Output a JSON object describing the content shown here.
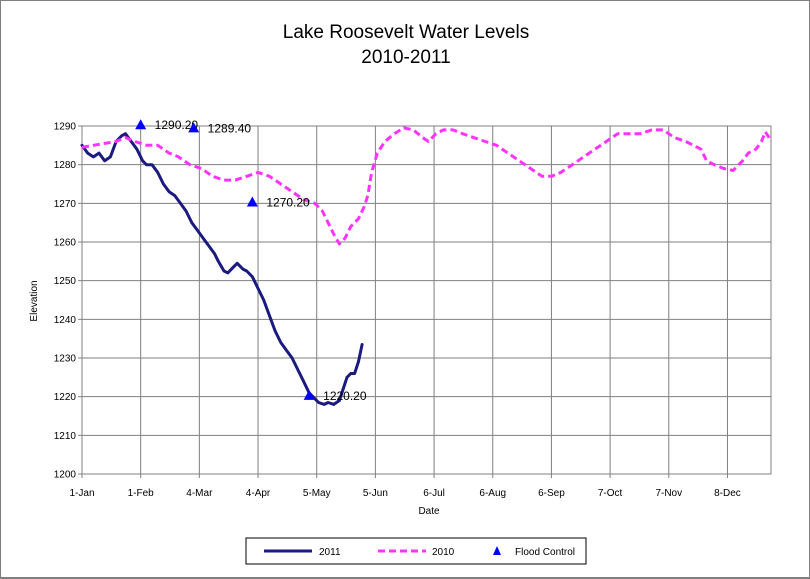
{
  "chart_data": {
    "type": "line",
    "title": "Lake Roosevelt Water Levels",
    "subtitle": "2010-2011",
    "xlabel": "Date",
    "ylabel": "Elevation",
    "ylim": [
      1200,
      1290
    ],
    "yticks": [
      1200,
      1210,
      1220,
      1230,
      1240,
      1250,
      1260,
      1270,
      1280,
      1290
    ],
    "xlim": [
      1,
      365
    ],
    "xticks": [
      {
        "day": 1,
        "label": "1-Jan"
      },
      {
        "day": 32,
        "label": "1-Feb"
      },
      {
        "day": 63,
        "label": "4-Mar"
      },
      {
        "day": 94,
        "label": "4-Apr"
      },
      {
        "day": 125,
        "label": "5-May"
      },
      {
        "day": 156,
        "label": "5-Jun"
      },
      {
        "day": 187,
        "label": "6-Jul"
      },
      {
        "day": 218,
        "label": "6-Aug"
      },
      {
        "day": 249,
        "label": "6-Sep"
      },
      {
        "day": 280,
        "label": "7-Oct"
      },
      {
        "day": 311,
        "label": "7-Nov"
      },
      {
        "day": 342,
        "label": "8-Dec"
      }
    ],
    "grid": true,
    "legend_position": "bottom",
    "series": [
      {
        "name": "2011",
        "color": "#1a1a80",
        "style": "solid",
        "points": [
          [
            1,
            1285
          ],
          [
            4,
            1283
          ],
          [
            7,
            1282
          ],
          [
            10,
            1283
          ],
          [
            13,
            1281
          ],
          [
            16,
            1282
          ],
          [
            19,
            1286
          ],
          [
            22,
            1287.5
          ],
          [
            24,
            1288
          ],
          [
            27,
            1286
          ],
          [
            30,
            1284
          ],
          [
            33,
            1281
          ],
          [
            35,
            1280
          ],
          [
            38,
            1280
          ],
          [
            41,
            1278
          ],
          [
            44,
            1275
          ],
          [
            47,
            1273
          ],
          [
            50,
            1272
          ],
          [
            53,
            1270
          ],
          [
            56,
            1268
          ],
          [
            59,
            1265
          ],
          [
            62,
            1263
          ],
          [
            65,
            1261
          ],
          [
            68,
            1259
          ],
          [
            71,
            1257
          ],
          [
            73,
            1255
          ],
          [
            76,
            1252.5
          ],
          [
            78,
            1252
          ],
          [
            81,
            1253.5
          ],
          [
            83,
            1254.5
          ],
          [
            86,
            1253
          ],
          [
            88,
            1252.5
          ],
          [
            91,
            1251
          ],
          [
            94,
            1248
          ],
          [
            97,
            1245
          ],
          [
            100,
            1241
          ],
          [
            103,
            1237
          ],
          [
            106,
            1234
          ],
          [
            109,
            1232
          ],
          [
            112,
            1230
          ],
          [
            115,
            1227
          ],
          [
            118,
            1224
          ],
          [
            121,
            1221
          ],
          [
            123,
            1220
          ],
          [
            126,
            1218.5
          ],
          [
            129,
            1218
          ],
          [
            131,
            1218.5
          ],
          [
            134,
            1218
          ],
          [
            137,
            1219
          ],
          [
            139,
            1222
          ],
          [
            141,
            1225
          ],
          [
            143,
            1226
          ],
          [
            145,
            1226
          ],
          [
            147,
            1229
          ],
          [
            149,
            1233.5
          ]
        ]
      },
      {
        "name": "2010",
        "color": "#ff33ff",
        "style": "dashed",
        "points": [
          [
            1,
            1284.5
          ],
          [
            7,
            1285
          ],
          [
            13,
            1285.5
          ],
          [
            19,
            1286
          ],
          [
            24,
            1287
          ],
          [
            29,
            1286
          ],
          [
            35,
            1285
          ],
          [
            41,
            1285
          ],
          [
            47,
            1283
          ],
          [
            52,
            1282
          ],
          [
            58,
            1280
          ],
          [
            64,
            1279
          ],
          [
            70,
            1277
          ],
          [
            76,
            1276
          ],
          [
            82,
            1276
          ],
          [
            88,
            1277
          ],
          [
            94,
            1278
          ],
          [
            100,
            1277
          ],
          [
            106,
            1275
          ],
          [
            112,
            1273
          ],
          [
            118,
            1271
          ],
          [
            124,
            1270
          ],
          [
            128,
            1268
          ],
          [
            131,
            1265
          ],
          [
            134,
            1262
          ],
          [
            137,
            1259.5
          ],
          [
            140,
            1261
          ],
          [
            143,
            1264
          ],
          [
            147,
            1266
          ],
          [
            150,
            1269
          ],
          [
            152,
            1272
          ],
          [
            154,
            1278
          ],
          [
            157,
            1283
          ],
          [
            161,
            1286
          ],
          [
            166,
            1288
          ],
          [
            171,
            1289.5
          ],
          [
            176,
            1289
          ],
          [
            181,
            1287
          ],
          [
            184,
            1286
          ],
          [
            188,
            1288
          ],
          [
            192,
            1289
          ],
          [
            197,
            1289
          ],
          [
            202,
            1288
          ],
          [
            208,
            1287
          ],
          [
            214,
            1286
          ],
          [
            220,
            1285
          ],
          [
            226,
            1283
          ],
          [
            232,
            1281
          ],
          [
            238,
            1279
          ],
          [
            244,
            1277
          ],
          [
            249,
            1277
          ],
          [
            254,
            1278
          ],
          [
            260,
            1280
          ],
          [
            266,
            1282
          ],
          [
            272,
            1284
          ],
          [
            278,
            1286
          ],
          [
            284,
            1288
          ],
          [
            290,
            1288
          ],
          [
            296,
            1288
          ],
          [
            302,
            1289
          ],
          [
            308,
            1289
          ],
          [
            314,
            1287
          ],
          [
            320,
            1286
          ],
          [
            324,
            1285
          ],
          [
            328,
            1284
          ],
          [
            331,
            1281
          ],
          [
            335,
            1280
          ],
          [
            340,
            1279
          ],
          [
            345,
            1278.5
          ],
          [
            350,
            1281
          ],
          [
            353,
            1283
          ],
          [
            357,
            1284
          ],
          [
            360,
            1286
          ],
          [
            362,
            1288.5
          ],
          [
            364,
            1287
          ],
          [
            365,
            1286
          ]
        ]
      },
      {
        "name": "Flood Control",
        "color": "#0000ff",
        "style": "marker",
        "points": [
          {
            "day": 32,
            "value": 1290.2,
            "label": "1290.20"
          },
          {
            "day": 60,
            "value": 1289.4,
            "label": "1289.40"
          },
          {
            "day": 91,
            "value": 1270.2,
            "label": "1270.20"
          },
          {
            "day": 121,
            "value": 1220.2,
            "label": "1220.20"
          }
        ]
      }
    ]
  }
}
